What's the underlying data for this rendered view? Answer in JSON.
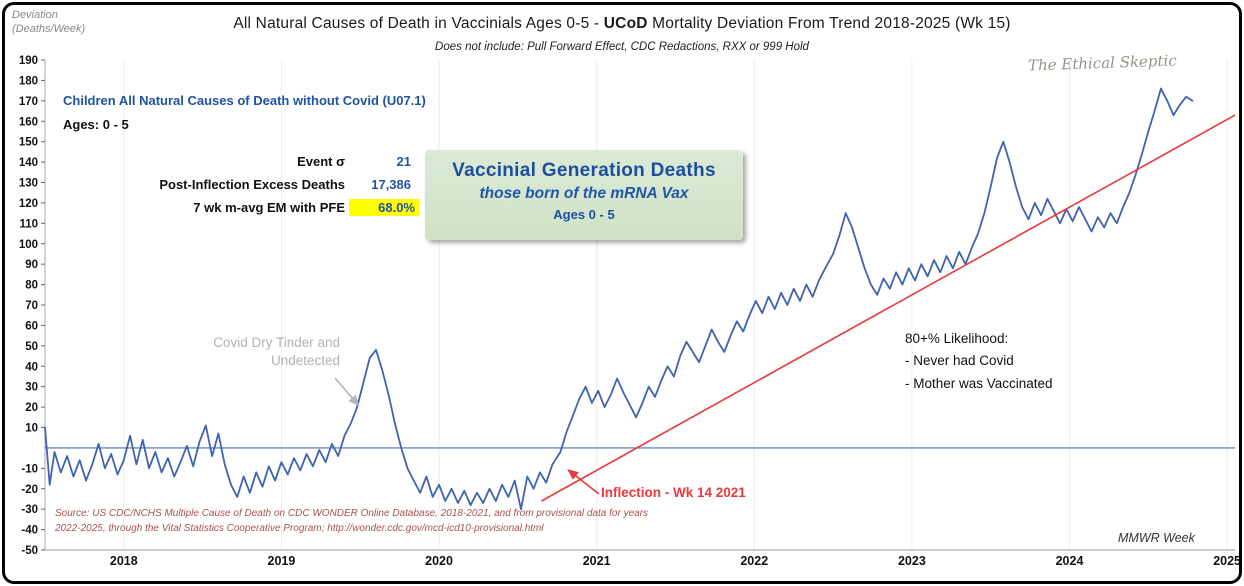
{
  "header": {
    "axis_label_line1": "Deviation",
    "axis_label_line2": "(Deaths/Week)",
    "title_part1": "All Natural Causes of Death in Vaccinials Ages 0-5 - ",
    "title_bold": "UCoD",
    "title_part2": " Mortality Deviation From Trend  2018-2025 (Wk 15)",
    "subtitle": "Does not include: Pull Forward Effect,  CDC Redactions,  RXX or 999 Hold",
    "watermark": "The Ethical Skeptic"
  },
  "legend": {
    "series_label": "Children All Natural Causes of Death without Covid (U07.1)",
    "ages_label": "Ages: 0 - 5"
  },
  "stats": {
    "rows": [
      {
        "label": "Event σ",
        "value": "21"
      },
      {
        "label": "Post-Inflection Excess Deaths",
        "value": "17,386"
      },
      {
        "label": "7 wk m-avg EM with PFE",
        "value": "68.0%"
      }
    ]
  },
  "callout_box": {
    "line1": "Vaccinial Generation Deaths",
    "line2": "those born of the mRNA Vax",
    "line3": "Ages 0 - 5"
  },
  "annotations": {
    "dry_tinder_line1": "Covid Dry Tinder and",
    "dry_tinder_line2": "Undetected",
    "likelihood_title": "80+% Likelihood:",
    "likelihood_item1": "- Never had Covid",
    "likelihood_item2": "- Mother was Vaccinated",
    "inflection": "Inflection - Wk 14 2021",
    "source_line1": "Source: US CDC/NCHS Multiple Cause of Death on CDC WONDER Online Database, 2018-2021, and from provisional data for years",
    "source_line2": "2022-2025, through the Vital Statistics Cooperative Program; http://wonder.cdc.gov/mcd-icd10-provisional.html",
    "xaxis_label": "MMWR Week"
  },
  "chart_data": {
    "type": "line",
    "title": "All Natural Causes of Death in Vaccinials Ages 0-5 - UCoD Mortality Deviation From Trend 2018-2025 (Wk 15)",
    "xlabel": "MMWR Week",
    "ylabel": "Deviation (Deaths/Week)",
    "xlim": [
      2018.0,
      2025.55
    ],
    "ylim": [
      -50,
      190
    ],
    "x_ticks": [
      2018,
      2019,
      2020,
      2021,
      2022,
      2023,
      2024,
      2025
    ],
    "x_tick_offset": 0.5,
    "y_ticks": [
      190,
      180,
      170,
      160,
      150,
      140,
      130,
      120,
      110,
      100,
      90,
      80,
      70,
      60,
      50,
      40,
      30,
      20,
      10,
      -10,
      -20,
      -30,
      -40,
      -50
    ],
    "grid": "vertical-year-lines",
    "zero_line": 0,
    "zero_line_color": "#4472c4",
    "series": [
      {
        "name": "Children All Natural Causes of Death without Covid (U07.1), Ages 0-5, weekly deviation",
        "color": "#3f63ae",
        "points": [
          [
            2018.0,
            10
          ],
          [
            2018.03,
            -18
          ],
          [
            2018.06,
            -2
          ],
          [
            2018.1,
            -12
          ],
          [
            2018.14,
            -4
          ],
          [
            2018.18,
            -14
          ],
          [
            2018.22,
            -6
          ],
          [
            2018.26,
            -16
          ],
          [
            2018.3,
            -8
          ],
          [
            2018.34,
            2
          ],
          [
            2018.38,
            -10
          ],
          [
            2018.42,
            -3
          ],
          [
            2018.46,
            -13
          ],
          [
            2018.5,
            -6
          ],
          [
            2018.54,
            6
          ],
          [
            2018.58,
            -8
          ],
          [
            2018.62,
            4
          ],
          [
            2018.66,
            -10
          ],
          [
            2018.7,
            -2
          ],
          [
            2018.74,
            -12
          ],
          [
            2018.78,
            -5
          ],
          [
            2018.82,
            -14
          ],
          [
            2018.86,
            -7
          ],
          [
            2018.9,
            1
          ],
          [
            2018.94,
            -9
          ],
          [
            2018.98,
            3
          ],
          [
            2019.02,
            11
          ],
          [
            2019.06,
            -4
          ],
          [
            2019.1,
            7
          ],
          [
            2019.14,
            -8
          ],
          [
            2019.18,
            -18
          ],
          [
            2019.22,
            -24
          ],
          [
            2019.26,
            -14
          ],
          [
            2019.3,
            -22
          ],
          [
            2019.34,
            -12
          ],
          [
            2019.38,
            -19
          ],
          [
            2019.42,
            -9
          ],
          [
            2019.46,
            -16
          ],
          [
            2019.5,
            -7
          ],
          [
            2019.54,
            -13
          ],
          [
            2019.58,
            -5
          ],
          [
            2019.62,
            -11
          ],
          [
            2019.66,
            -3
          ],
          [
            2019.7,
            -9
          ],
          [
            2019.74,
            -1
          ],
          [
            2019.78,
            -7
          ],
          [
            2019.82,
            2
          ],
          [
            2019.86,
            -4
          ],
          [
            2019.9,
            6
          ],
          [
            2019.94,
            12
          ],
          [
            2019.98,
            20
          ],
          [
            2020.02,
            32
          ],
          [
            2020.06,
            44
          ],
          [
            2020.1,
            48
          ],
          [
            2020.14,
            38
          ],
          [
            2020.18,
            26
          ],
          [
            2020.22,
            12
          ],
          [
            2020.26,
            0
          ],
          [
            2020.3,
            -10
          ],
          [
            2020.34,
            -16
          ],
          [
            2020.38,
            -22
          ],
          [
            2020.42,
            -14
          ],
          [
            2020.46,
            -24
          ],
          [
            2020.5,
            -18
          ],
          [
            2020.54,
            -26
          ],
          [
            2020.58,
            -20
          ],
          [
            2020.62,
            -27
          ],
          [
            2020.66,
            -21
          ],
          [
            2020.7,
            -28
          ],
          [
            2020.74,
            -22
          ],
          [
            2020.78,
            -27
          ],
          [
            2020.82,
            -20
          ],
          [
            2020.86,
            -26
          ],
          [
            2020.9,
            -18
          ],
          [
            2020.94,
            -24
          ],
          [
            2020.98,
            -16
          ],
          [
            2021.02,
            -30
          ],
          [
            2021.06,
            -14
          ],
          [
            2021.1,
            -20
          ],
          [
            2021.14,
            -12
          ],
          [
            2021.18,
            -17
          ],
          [
            2021.22,
            -8
          ],
          [
            2021.27,
            -2
          ],
          [
            2021.31,
            8
          ],
          [
            2021.35,
            16
          ],
          [
            2021.39,
            24
          ],
          [
            2021.43,
            30
          ],
          [
            2021.47,
            22
          ],
          [
            2021.51,
            28
          ],
          [
            2021.55,
            20
          ],
          [
            2021.59,
            26
          ],
          [
            2021.63,
            34
          ],
          [
            2021.67,
            27
          ],
          [
            2021.71,
            21
          ],
          [
            2021.75,
            15
          ],
          [
            2021.79,
            22
          ],
          [
            2021.83,
            30
          ],
          [
            2021.87,
            25
          ],
          [
            2021.91,
            33
          ],
          [
            2021.95,
            40
          ],
          [
            2021.99,
            35
          ],
          [
            2022.03,
            45
          ],
          [
            2022.07,
            52
          ],
          [
            2022.11,
            47
          ],
          [
            2022.15,
            42
          ],
          [
            2022.19,
            50
          ],
          [
            2022.23,
            58
          ],
          [
            2022.27,
            52
          ],
          [
            2022.31,
            47
          ],
          [
            2022.35,
            55
          ],
          [
            2022.39,
            62
          ],
          [
            2022.43,
            57
          ],
          [
            2022.47,
            65
          ],
          [
            2022.51,
            72
          ],
          [
            2022.55,
            66
          ],
          [
            2022.59,
            74
          ],
          [
            2022.63,
            68
          ],
          [
            2022.67,
            76
          ],
          [
            2022.71,
            70
          ],
          [
            2022.75,
            78
          ],
          [
            2022.79,
            72
          ],
          [
            2022.83,
            80
          ],
          [
            2022.87,
            74
          ],
          [
            2022.91,
            82
          ],
          [
            2022.95,
            88
          ],
          [
            2023.0,
            95
          ],
          [
            2023.04,
            104
          ],
          [
            2023.08,
            115
          ],
          [
            2023.12,
            108
          ],
          [
            2023.16,
            98
          ],
          [
            2023.2,
            88
          ],
          [
            2023.24,
            80
          ],
          [
            2023.28,
            75
          ],
          [
            2023.32,
            83
          ],
          [
            2023.36,
            78
          ],
          [
            2023.4,
            86
          ],
          [
            2023.44,
            80
          ],
          [
            2023.48,
            88
          ],
          [
            2023.52,
            82
          ],
          [
            2023.56,
            90
          ],
          [
            2023.6,
            84
          ],
          [
            2023.64,
            92
          ],
          [
            2023.68,
            86
          ],
          [
            2023.72,
            94
          ],
          [
            2023.76,
            88
          ],
          [
            2023.8,
            96
          ],
          [
            2023.84,
            90
          ],
          [
            2023.88,
            98
          ],
          [
            2023.92,
            105
          ],
          [
            2023.96,
            115
          ],
          [
            2024.0,
            128
          ],
          [
            2024.04,
            142
          ],
          [
            2024.08,
            150
          ],
          [
            2024.12,
            140
          ],
          [
            2024.16,
            128
          ],
          [
            2024.2,
            118
          ],
          [
            2024.24,
            112
          ],
          [
            2024.28,
            120
          ],
          [
            2024.32,
            114
          ],
          [
            2024.36,
            122
          ],
          [
            2024.4,
            116
          ],
          [
            2024.44,
            110
          ],
          [
            2024.48,
            117
          ],
          [
            2024.52,
            111
          ],
          [
            2024.56,
            118
          ],
          [
            2024.6,
            112
          ],
          [
            2024.64,
            106
          ],
          [
            2024.68,
            113
          ],
          [
            2024.72,
            108
          ],
          [
            2024.76,
            115
          ],
          [
            2024.8,
            110
          ],
          [
            2024.84,
            118
          ],
          [
            2024.88,
            125
          ],
          [
            2024.92,
            134
          ],
          [
            2024.96,
            144
          ],
          [
            2025.0,
            155
          ],
          [
            2025.04,
            165
          ],
          [
            2025.08,
            176
          ],
          [
            2025.12,
            170
          ],
          [
            2025.16,
            163
          ],
          [
            2025.2,
            168
          ],
          [
            2025.24,
            172
          ],
          [
            2025.28,
            170
          ]
        ]
      },
      {
        "name": "Post-inflection linear trend",
        "color": "#e8393c",
        "points": [
          [
            2021.15,
            -26
          ],
          [
            2025.55,
            163
          ]
        ]
      }
    ],
    "annotations": [
      {
        "text": "Covid Dry Tinder and Undetected",
        "points_to": [
          2020.0,
          20
        ]
      },
      {
        "text": "Inflection - Wk 14 2021",
        "points_to": [
          2021.27,
          -5
        ]
      }
    ],
    "legend_position": "none"
  }
}
